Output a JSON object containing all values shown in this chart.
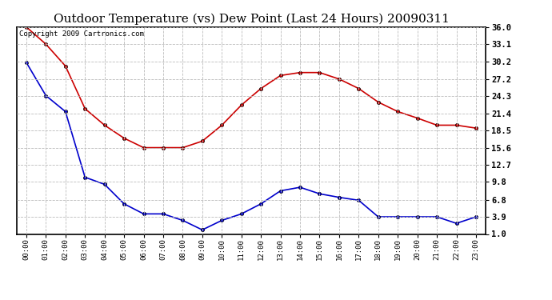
{
  "title": "Outdoor Temperature (vs) Dew Point (Last 24 Hours) 20090311",
  "copyright_text": "Copyright 2009 Cartronics.com",
  "x_labels": [
    "00:00",
    "01:00",
    "02:00",
    "03:00",
    "04:00",
    "05:00",
    "06:00",
    "07:00",
    "08:00",
    "09:00",
    "10:00",
    "11:00",
    "12:00",
    "13:00",
    "14:00",
    "15:00",
    "16:00",
    "17:00",
    "18:00",
    "19:00",
    "20:00",
    "21:00",
    "22:00",
    "23:00"
  ],
  "temp_data": [
    36.0,
    33.1,
    29.4,
    22.2,
    19.4,
    17.2,
    15.6,
    15.6,
    15.6,
    16.7,
    19.4,
    22.8,
    25.6,
    27.8,
    28.3,
    28.3,
    27.2,
    25.6,
    23.3,
    21.7,
    20.6,
    19.4,
    19.4,
    18.9
  ],
  "dew_data": [
    30.0,
    24.4,
    21.7,
    10.6,
    9.4,
    6.1,
    4.4,
    4.4,
    3.3,
    1.7,
    3.3,
    4.4,
    6.1,
    8.3,
    8.9,
    7.8,
    7.2,
    6.7,
    3.9,
    3.9,
    3.9,
    3.9,
    2.8,
    3.9
  ],
  "temp_color": "#cc0000",
  "dew_color": "#0000cc",
  "marker": "o",
  "markersize": 3,
  "linewidth": 1.2,
  "yticks": [
    1.0,
    3.9,
    6.8,
    9.8,
    12.7,
    15.6,
    18.5,
    21.4,
    24.3,
    27.2,
    30.2,
    33.1,
    36.0
  ],
  "ylim": [
    1.0,
    36.0
  ],
  "bg_color": "#ffffff",
  "plot_bg_color": "#ffffff",
  "grid_color": "#bbbbbb",
  "title_fontsize": 11,
  "copyright_fontsize": 6.5
}
